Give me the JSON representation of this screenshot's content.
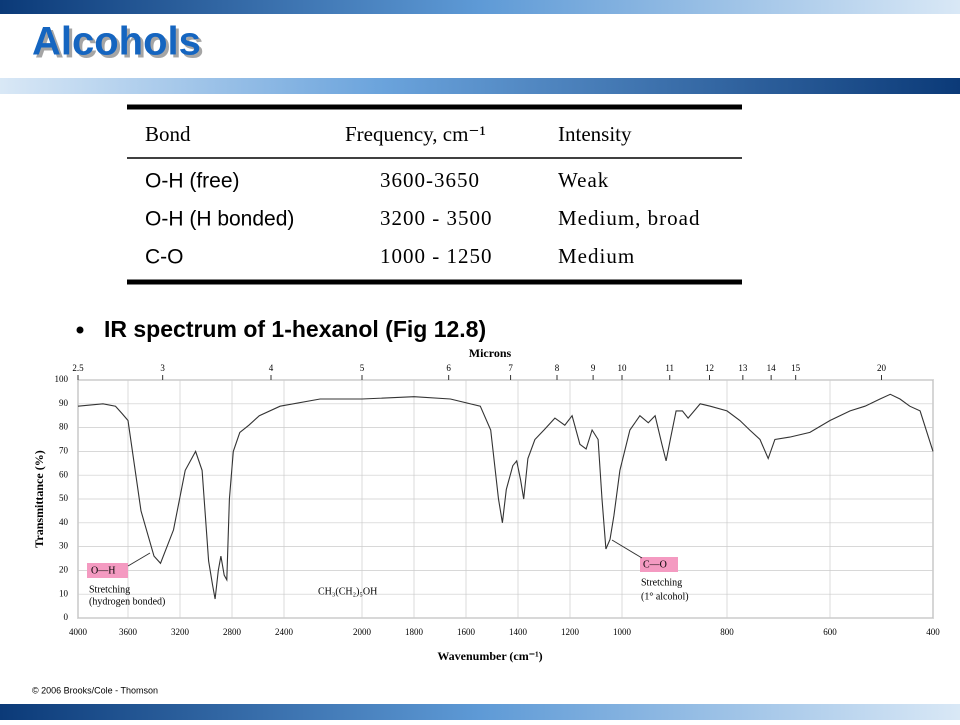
{
  "header": {
    "title": "Alcohols"
  },
  "table": {
    "columns": [
      "Bond",
      "Frequency, cm⁻¹",
      "Intensity"
    ],
    "rows": [
      [
        "O-H (free)",
        "3600-3650",
        "Weak"
      ],
      [
        "O-H (H bonded)",
        "3200 - 3500",
        "Medium, broad"
      ],
      [
        "C-O",
        "1000 - 1250",
        "Medium"
      ]
    ]
  },
  "bullet": "IR spectrum of 1-hexanol (Fig 12.8)",
  "chart_data": {
    "type": "line",
    "x_label": "Wavenumber (cm⁻¹)",
    "y_label": "Transmittance (%)",
    "top_label": "Microns",
    "x": [
      4000,
      3800,
      3700,
      3650,
      3600,
      3500,
      3400,
      3350,
      3250,
      3160,
      3080,
      3030,
      2980,
      2950,
      2930,
      2905,
      2885,
      2860,
      2840,
      2820,
      2790,
      2740,
      2670,
      2590,
      2430,
      2215,
      2000,
      1800,
      1660,
      1545,
      1505,
      1475,
      1460,
      1445,
      1420,
      1405,
      1390,
      1378,
      1362,
      1335,
      1300,
      1258,
      1220,
      1192,
      1162,
      1138,
      1115,
      1092,
      1077,
      1062,
      1046,
      1031,
      1008,
      985,
      966,
      950,
      937,
      924,
      916,
      908,
      897,
      885,
      874,
      851,
      832,
      800,
      775,
      756,
      736,
      720,
      707,
      678,
      639,
      600,
      561,
      532,
      503,
      483,
      464,
      445,
      425,
      400
    ],
    "values": [
      89,
      90,
      89,
      86,
      83,
      45,
      26,
      23,
      37,
      62,
      70,
      62,
      24,
      14,
      8,
      20,
      26,
      18,
      16,
      50,
      70,
      78,
      81,
      85,
      89,
      92,
      92,
      93,
      92,
      89,
      79,
      50,
      40,
      54,
      64,
      66,
      58,
      50,
      67,
      75,
      79,
      84,
      81,
      85,
      73,
      71,
      79,
      75,
      50,
      29,
      33,
      43,
      62,
      79,
      85,
      82,
      85,
      73,
      66,
      75,
      87,
      87,
      84,
      90,
      89,
      87,
      83,
      79,
      75,
      67,
      75,
      76,
      78,
      83,
      87,
      89,
      92,
      94,
      92,
      89,
      87,
      70
    ],
    "color": "#333333",
    "xlim": [
      4000,
      400
    ],
    "ylim": [
      0,
      100
    ],
    "xticks": [
      4000,
      3600,
      3200,
      2800,
      2400,
      2000,
      1800,
      1600,
      1400,
      1200,
      1000,
      800,
      600,
      400
    ],
    "yticks": [
      0,
      10,
      20,
      30,
      40,
      50,
      60,
      70,
      80,
      90,
      100
    ],
    "top_ticks": [
      2.5,
      3,
      4,
      5,
      6,
      7,
      8,
      9,
      10,
      11,
      12,
      13,
      14,
      15,
      20
    ],
    "grid": true,
    "annotations": [
      "O—H",
      "Stretching",
      "(hydrogen bonded)",
      "CH₃(CH₂)₅OH",
      "C—O",
      "Stretching",
      "(1° alcohol)"
    ]
  },
  "footer": "© 2006 Brooks/Cole - Thomson"
}
